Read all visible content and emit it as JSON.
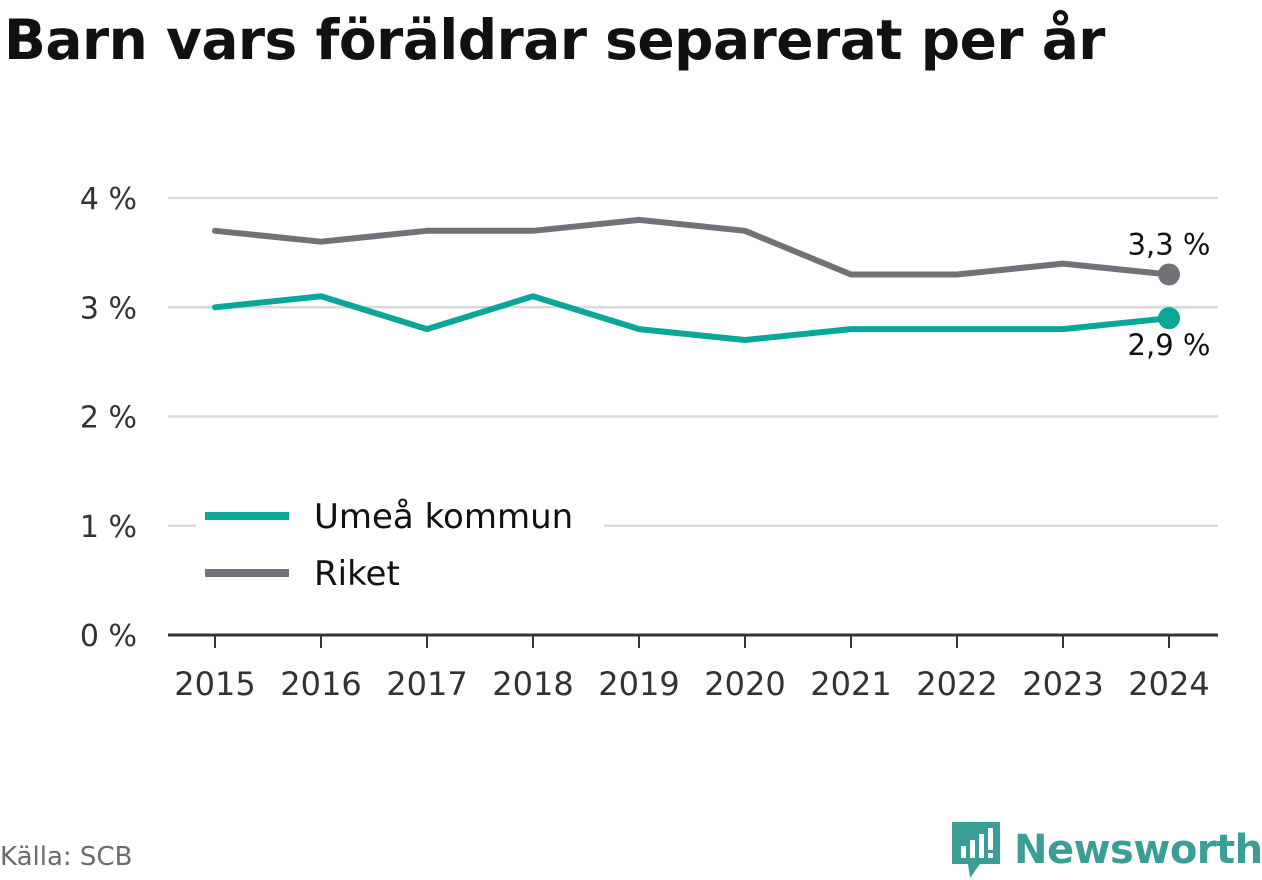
{
  "title": "Barn vars föräldrar separerat per år",
  "source": "Källa: SCB",
  "brand": "Newsworthy",
  "colors": {
    "umea": "#0aa697",
    "riket": "#727178",
    "grid": "#d9d9d9",
    "axis": "#333333",
    "brand": "#3a9e96"
  },
  "chart_data": {
    "type": "line",
    "title": "Barn vars föräldrar separerat per år",
    "xlabel": "",
    "ylabel": "",
    "categories": [
      "2015",
      "2016",
      "2017",
      "2018",
      "2019",
      "2020",
      "2021",
      "2022",
      "2023",
      "2024"
    ],
    "y_ticks": [
      0,
      1,
      2,
      3,
      4
    ],
    "y_tick_labels": [
      "0 %",
      "1 %",
      "2 %",
      "3 %",
      "4 %"
    ],
    "ylim": [
      0,
      4
    ],
    "grid": true,
    "legend_position": "bottom-left",
    "series": [
      {
        "name": "Umeå kommun",
        "color": "#0aa697",
        "values": [
          3.0,
          3.1,
          2.8,
          3.1,
          2.8,
          2.7,
          2.8,
          2.8,
          2.8,
          2.9
        ],
        "end_label": "2,9 %"
      },
      {
        "name": "Riket",
        "color": "#727178",
        "values": [
          3.7,
          3.6,
          3.7,
          3.7,
          3.8,
          3.7,
          3.3,
          3.3,
          3.4,
          3.3
        ],
        "end_label": "3,3 %"
      }
    ]
  }
}
